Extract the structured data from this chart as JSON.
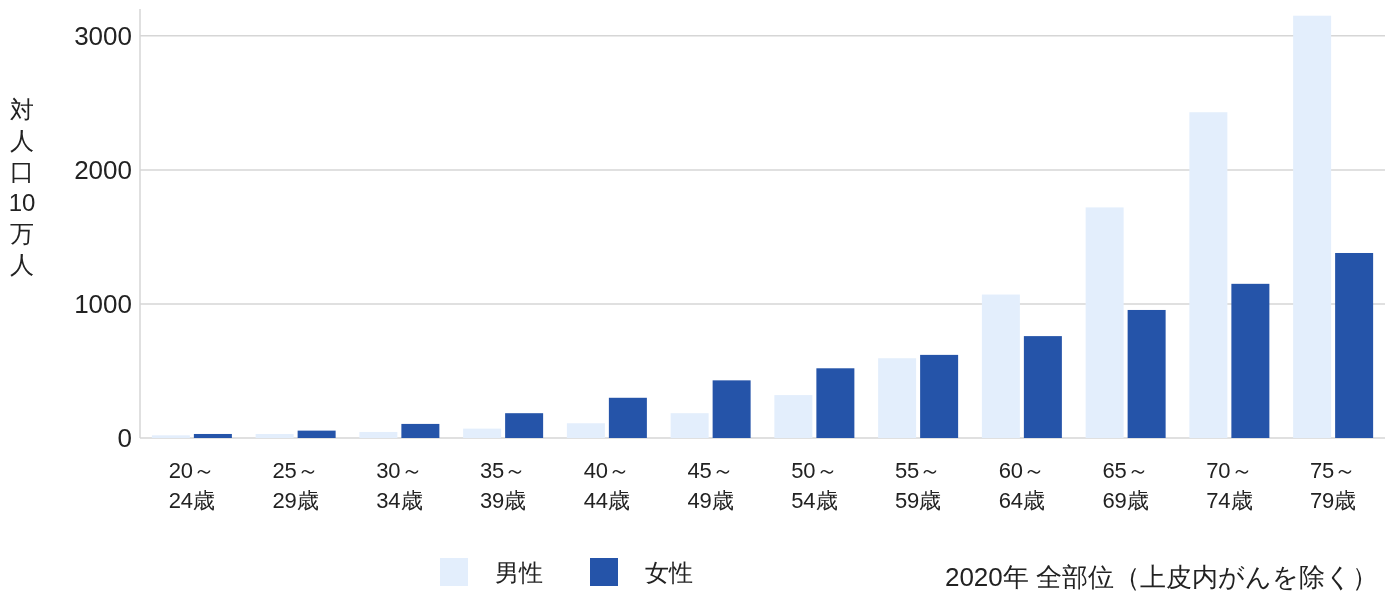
{
  "chart_data": {
    "type": "bar",
    "ylabel": "対人口10万人",
    "categories": [
      "20～24歳",
      "25～29歳",
      "30～34歳",
      "35～39歳",
      "40～44歳",
      "45～49歳",
      "50～54歳",
      "55～59歳",
      "60～64歳",
      "65～69歳",
      "70～74歳",
      "75～79歳"
    ],
    "series": [
      {
        "name": "男性",
        "color": "#e3eefc",
        "values": [
          20,
          30,
          45,
          70,
          110,
          185,
          320,
          595,
          1070,
          1720,
          2430,
          3150
        ]
      },
      {
        "name": "女性",
        "color": "#2554a9",
        "values": [
          30,
          55,
          105,
          185,
          300,
          430,
          520,
          620,
          760,
          955,
          1150,
          1380
        ]
      }
    ],
    "ylim": [
      0,
      3200
    ],
    "yticks": [
      0,
      1000,
      2000,
      3000
    ],
    "grid": "y",
    "legend": "bottom",
    "annotations": [
      "2020年 全部位（上皮内がんを除く）"
    ]
  }
}
